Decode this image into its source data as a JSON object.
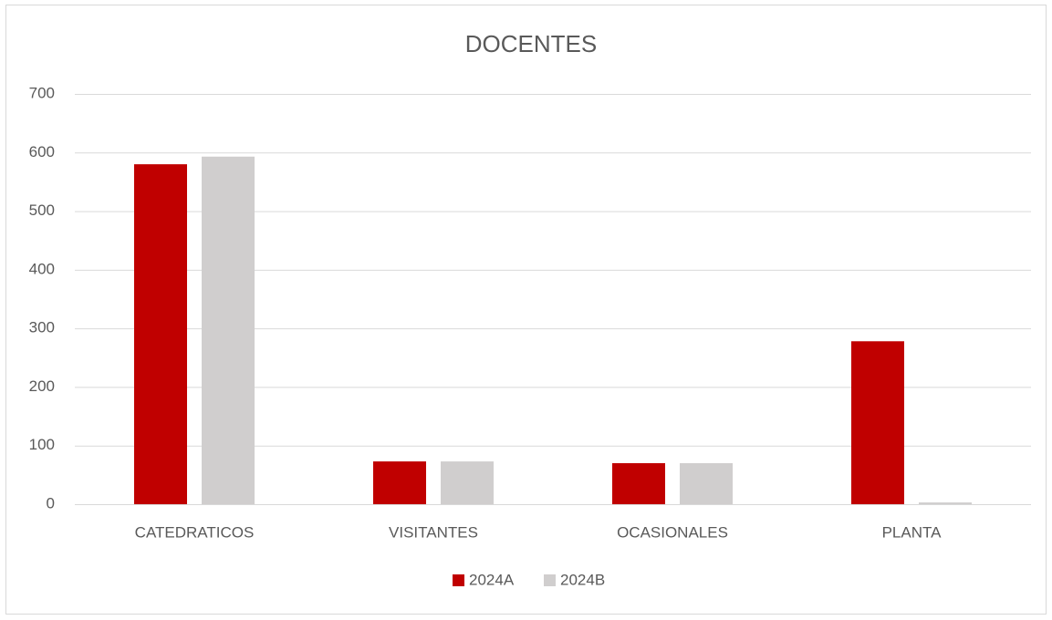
{
  "chart_data": {
    "type": "bar",
    "title": "DOCENTES",
    "categories": [
      "CATEDRATICOS",
      "VISITANTES",
      "OCASIONALES",
      "PLANTA"
    ],
    "series": [
      {
        "name": "2024A",
        "color": "#c00000",
        "values": [
          580,
          73,
          70,
          278
        ]
      },
      {
        "name": "2024B",
        "color": "#d0cece",
        "values": [
          593,
          73,
          70,
          3
        ]
      }
    ],
    "ylim": [
      0,
      700
    ],
    "yticks": [
      0,
      100,
      200,
      300,
      400,
      500,
      600,
      700
    ],
    "grid": true,
    "legend": "bottom"
  }
}
